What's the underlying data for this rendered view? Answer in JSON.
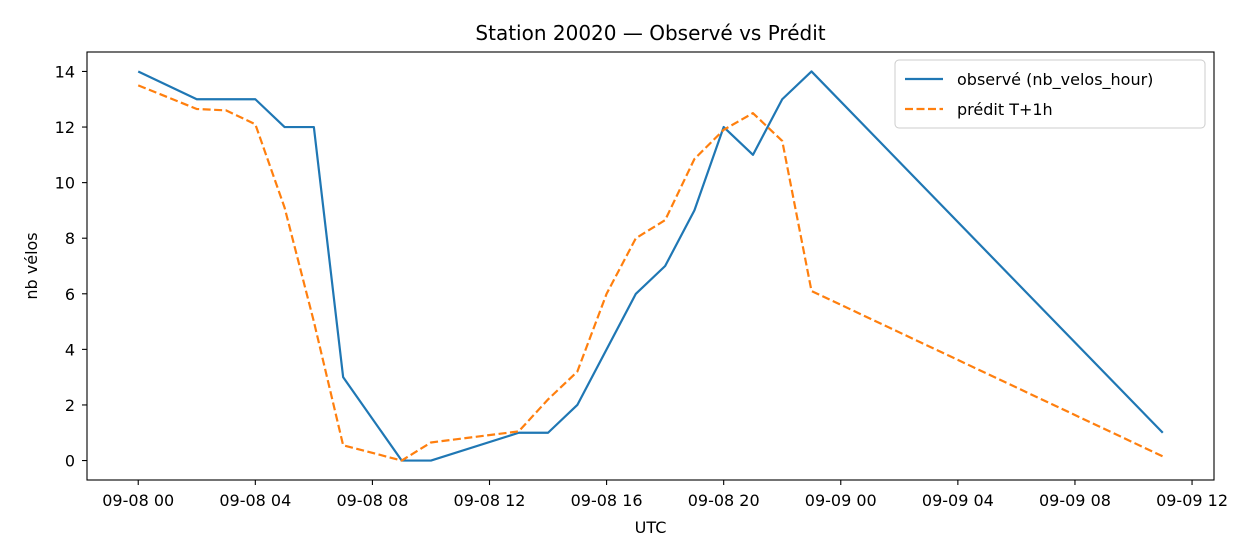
{
  "chart_data": {
    "type": "line",
    "title": "Station 20020 — Observé vs Prédit",
    "xlabel": "UTC",
    "ylabel": "nb vélos",
    "x_is_datetime": true,
    "x_ticks": [
      "09-08 00",
      "09-08 04",
      "09-08 08",
      "09-08 12",
      "09-08 16",
      "09-08 20",
      "09-09 00",
      "09-09 04",
      "09-09 08",
      "09-09 12"
    ],
    "x_tick_values": [
      "2023-09-08T00:00",
      "2023-09-08T04:00",
      "2023-09-08T08:00",
      "2023-09-08T12:00",
      "2023-09-08T16:00",
      "2023-09-08T20:00",
      "2023-09-09T00:00",
      "2023-09-09T04:00",
      "2023-09-09T08:00",
      "2023-09-09T12:00"
    ],
    "y_ticks": [
      0,
      2,
      4,
      6,
      8,
      10,
      12,
      14
    ],
    "xlim": [
      "2023-09-07T22:15",
      "2023-09-09T12:45"
    ],
    "ylim": [
      -0.7,
      14.7
    ],
    "grid": false,
    "legend_position": "top-right",
    "series": [
      {
        "name": "observé (nb_velos_hour)",
        "color": "#1f77b4",
        "style": "solid",
        "points": [
          {
            "x": "2023-09-08T00:00",
            "y": 14
          },
          {
            "x": "2023-09-08T02:00",
            "y": 13
          },
          {
            "x": "2023-09-08T03:00",
            "y": 13
          },
          {
            "x": "2023-09-08T04:00",
            "y": 13
          },
          {
            "x": "2023-09-08T05:00",
            "y": 12
          },
          {
            "x": "2023-09-08T06:00",
            "y": 12
          },
          {
            "x": "2023-09-08T07:00",
            "y": 3
          },
          {
            "x": "2023-09-08T09:00",
            "y": 0
          },
          {
            "x": "2023-09-08T10:00",
            "y": 0
          },
          {
            "x": "2023-09-08T13:00",
            "y": 1
          },
          {
            "x": "2023-09-08T14:00",
            "y": 1
          },
          {
            "x": "2023-09-08T15:00",
            "y": 2
          },
          {
            "x": "2023-09-08T17:00",
            "y": 6
          },
          {
            "x": "2023-09-08T18:00",
            "y": 7
          },
          {
            "x": "2023-09-08T19:00",
            "y": 9
          },
          {
            "x": "2023-09-08T20:00",
            "y": 12
          },
          {
            "x": "2023-09-08T21:00",
            "y": 11
          },
          {
            "x": "2023-09-08T22:00",
            "y": 13
          },
          {
            "x": "2023-09-08T23:00",
            "y": 14
          },
          {
            "x": "2023-09-09T11:00",
            "y": 1
          }
        ]
      },
      {
        "name": "prédit T+1h",
        "color": "#ff7f0e",
        "style": "dashed",
        "points": [
          {
            "x": "2023-09-08T00:00",
            "y": 13.5
          },
          {
            "x": "2023-09-08T02:00",
            "y": 12.65
          },
          {
            "x": "2023-09-08T03:00",
            "y": 12.6
          },
          {
            "x": "2023-09-08T04:00",
            "y": 12.1
          },
          {
            "x": "2023-09-08T05:00",
            "y": 9.1
          },
          {
            "x": "2023-09-08T06:00",
            "y": 5.0
          },
          {
            "x": "2023-09-08T07:00",
            "y": 0.55
          },
          {
            "x": "2023-09-08T09:00",
            "y": 0.0
          },
          {
            "x": "2023-09-08T10:00",
            "y": 0.65
          },
          {
            "x": "2023-09-08T13:00",
            "y": 1.05
          },
          {
            "x": "2023-09-08T14:00",
            "y": 2.2
          },
          {
            "x": "2023-09-08T15:00",
            "y": 3.2
          },
          {
            "x": "2023-09-08T16:00",
            "y": 6.0
          },
          {
            "x": "2023-09-08T17:00",
            "y": 8.0
          },
          {
            "x": "2023-09-08T18:00",
            "y": 8.65
          },
          {
            "x": "2023-09-08T19:00",
            "y": 10.85
          },
          {
            "x": "2023-09-08T20:00",
            "y": 11.9
          },
          {
            "x": "2023-09-08T21:00",
            "y": 12.5
          },
          {
            "x": "2023-09-08T22:00",
            "y": 11.5
          },
          {
            "x": "2023-09-08T23:00",
            "y": 6.1
          },
          {
            "x": "2023-09-09T11:00",
            "y": 0.15
          }
        ]
      }
    ]
  }
}
